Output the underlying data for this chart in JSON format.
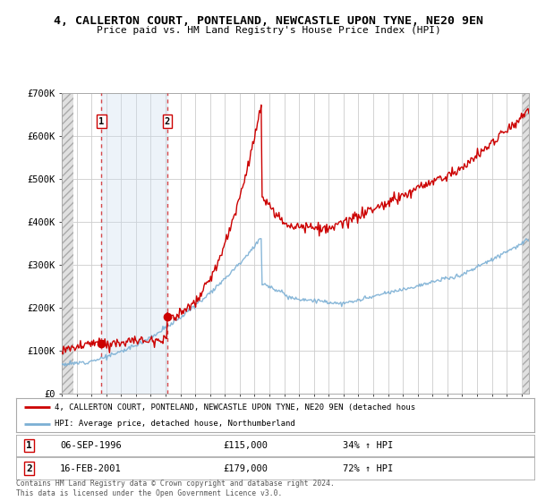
{
  "title": "4, CALLERTON COURT, PONTELAND, NEWCASTLE UPON TYNE, NE20 9EN",
  "subtitle": "Price paid vs. HM Land Registry's House Price Index (HPI)",
  "sale1_date_num": 1996.68,
  "sale1_price": 115000,
  "sale2_date_num": 2001.12,
  "sale2_price": 179000,
  "legend_line1": "4, CALLERTON COURT, PONTELAND, NEWCASTLE UPON TYNE, NE20 9EN (detached hous",
  "legend_line2": "HPI: Average price, detached house, Northumberland",
  "footer": "Contains HM Land Registry data © Crown copyright and database right 2024.\nThis data is licensed under the Open Government Licence v3.0.",
  "xmin": 1994.0,
  "xmax": 2025.5,
  "ymin": 0,
  "ymax": 700000,
  "red_color": "#cc0000",
  "blue_color": "#7bafd4",
  "hatch_bg": "#e0e0e0",
  "span_color": "#ccddf0",
  "bg_color": "#ffffff",
  "grid_color": "#cccccc"
}
